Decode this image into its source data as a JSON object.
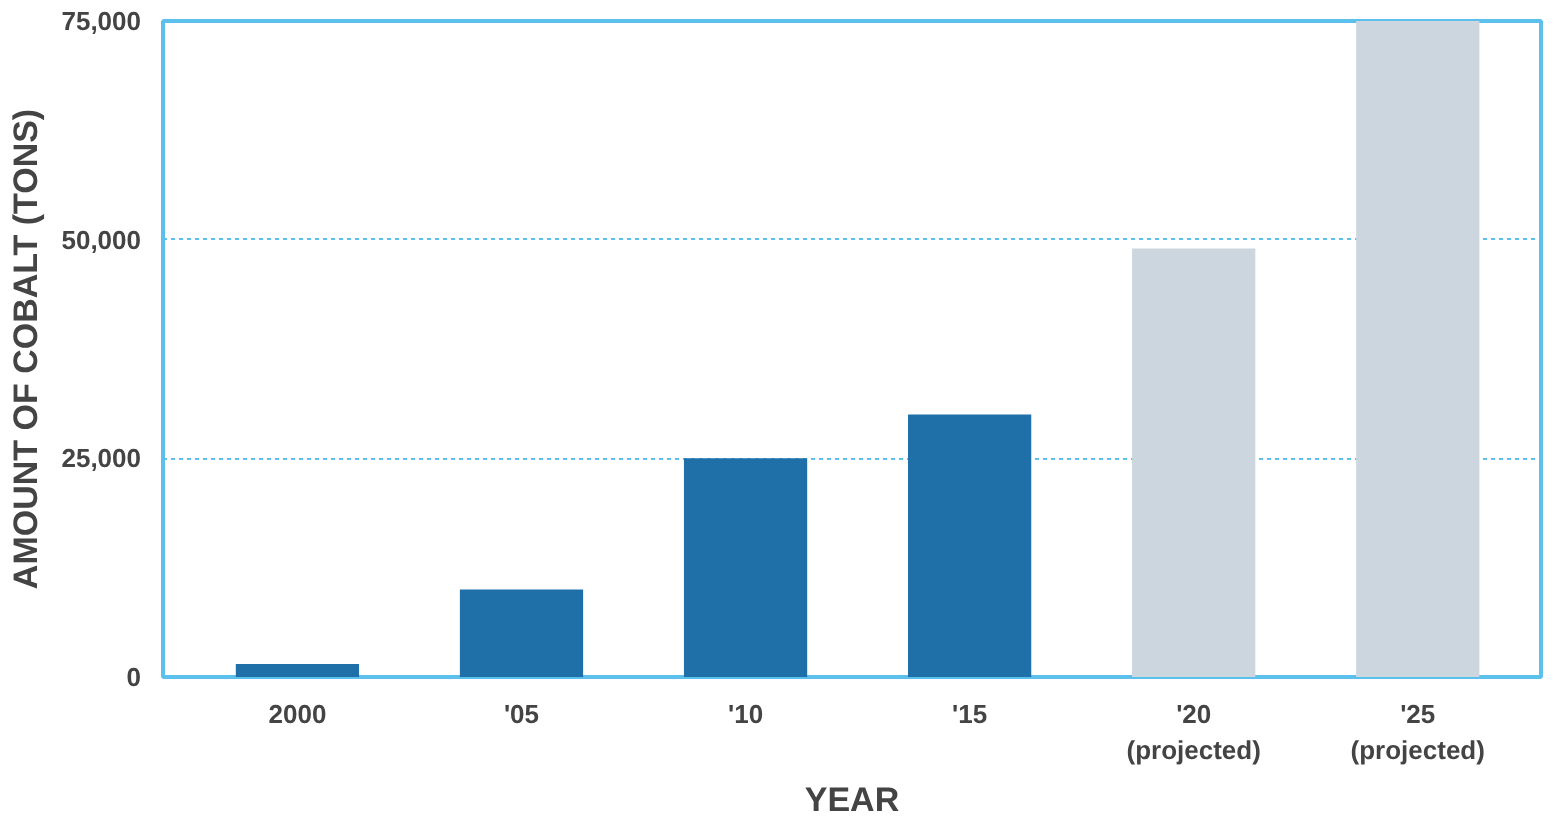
{
  "chart_data": {
    "type": "bar",
    "xlabel": "YEAR",
    "ylabel": "AMOUNT OF COBALT (TONS)",
    "categories": [
      "2000",
      "'05",
      "'10",
      "'15",
      "'20\n(projected)",
      "'25\n(projected)"
    ],
    "values": [
      1500,
      10000,
      25000,
      30000,
      49000,
      75000
    ],
    "colors": [
      "#1f70a8",
      "#1f70a8",
      "#1f70a8",
      "#1f70a8",
      "#ccd6de",
      "#ccd6de"
    ],
    "ylim": [
      0,
      75000
    ],
    "yticks": [
      {
        "value": 0,
        "label": "0"
      },
      {
        "value": 25000,
        "label": "25,000"
      },
      {
        "value": 50000,
        "label": "50,000"
      },
      {
        "value": 75000,
        "label": "75,000"
      }
    ],
    "grid": "y"
  }
}
